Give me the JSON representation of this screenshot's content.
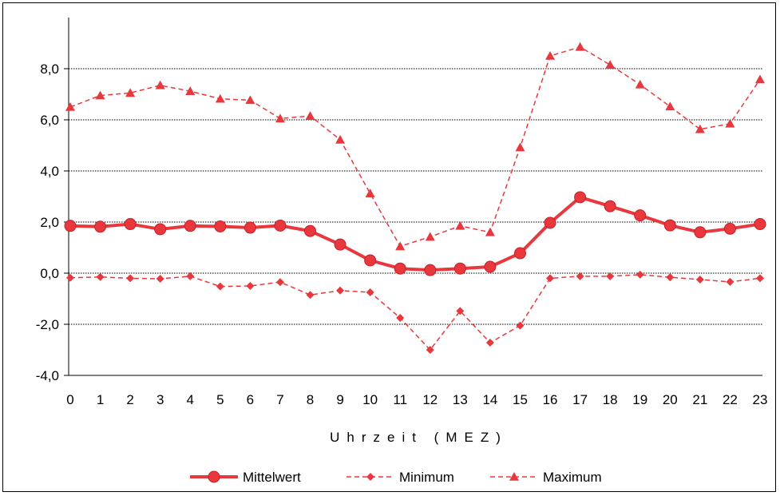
{
  "chart_data": {
    "type": "line",
    "title": "",
    "xlabel": "Uhrzeit (MEZ)",
    "ylabel": "",
    "x": [
      0,
      1,
      2,
      3,
      4,
      5,
      6,
      7,
      8,
      9,
      10,
      11,
      12,
      13,
      14,
      15,
      16,
      17,
      18,
      19,
      20,
      21,
      22,
      23
    ],
    "x_tick_labels": [
      "0",
      "1",
      "2",
      "3",
      "4",
      "5",
      "6",
      "7",
      "8",
      "9",
      "10",
      "11",
      "12",
      "13",
      "14",
      "15",
      "16",
      "17",
      "18",
      "19",
      "20",
      "21",
      "22",
      "23"
    ],
    "ylim": [
      -4,
      10
    ],
    "y_ticks": [
      -4,
      -2,
      0,
      2,
      4,
      6,
      8
    ],
    "y_tick_labels": [
      "-4,0",
      "-2,0",
      "0,0",
      "2,0",
      "4,0",
      "6,0",
      "8,0"
    ],
    "grid": "horizontal dotted",
    "legend_position": "bottom",
    "series": [
      {
        "name": "Mittelwert",
        "style": "solid",
        "marker": "circle",
        "color": "#e8383d",
        "values": [
          1.85,
          1.82,
          1.92,
          1.72,
          1.85,
          1.83,
          1.78,
          1.86,
          1.65,
          1.12,
          0.5,
          0.18,
          0.12,
          0.18,
          0.25,
          0.78,
          1.97,
          2.97,
          2.62,
          2.26,
          1.87,
          1.6,
          1.74,
          1.92
        ]
      },
      {
        "name": "Minimum",
        "style": "dashed",
        "marker": "diamond",
        "color": "#e8383d",
        "values": [
          -0.18,
          -0.15,
          -0.2,
          -0.22,
          -0.12,
          -0.52,
          -0.5,
          -0.35,
          -0.85,
          -0.68,
          -0.75,
          -1.75,
          -3.0,
          -1.48,
          -2.72,
          -2.05,
          -0.2,
          -0.12,
          -0.12,
          -0.06,
          -0.16,
          -0.25,
          -0.34,
          -0.2
        ]
      },
      {
        "name": "Maximum",
        "style": "dashed",
        "marker": "triangle",
        "color": "#e8383d",
        "values": [
          6.5,
          6.95,
          7.05,
          7.35,
          7.12,
          6.82,
          6.77,
          6.05,
          6.15,
          5.22,
          3.12,
          1.05,
          1.42,
          1.85,
          1.6,
          4.92,
          8.5,
          8.85,
          8.15,
          7.38,
          6.52,
          5.63,
          5.85,
          7.58
        ]
      }
    ]
  }
}
